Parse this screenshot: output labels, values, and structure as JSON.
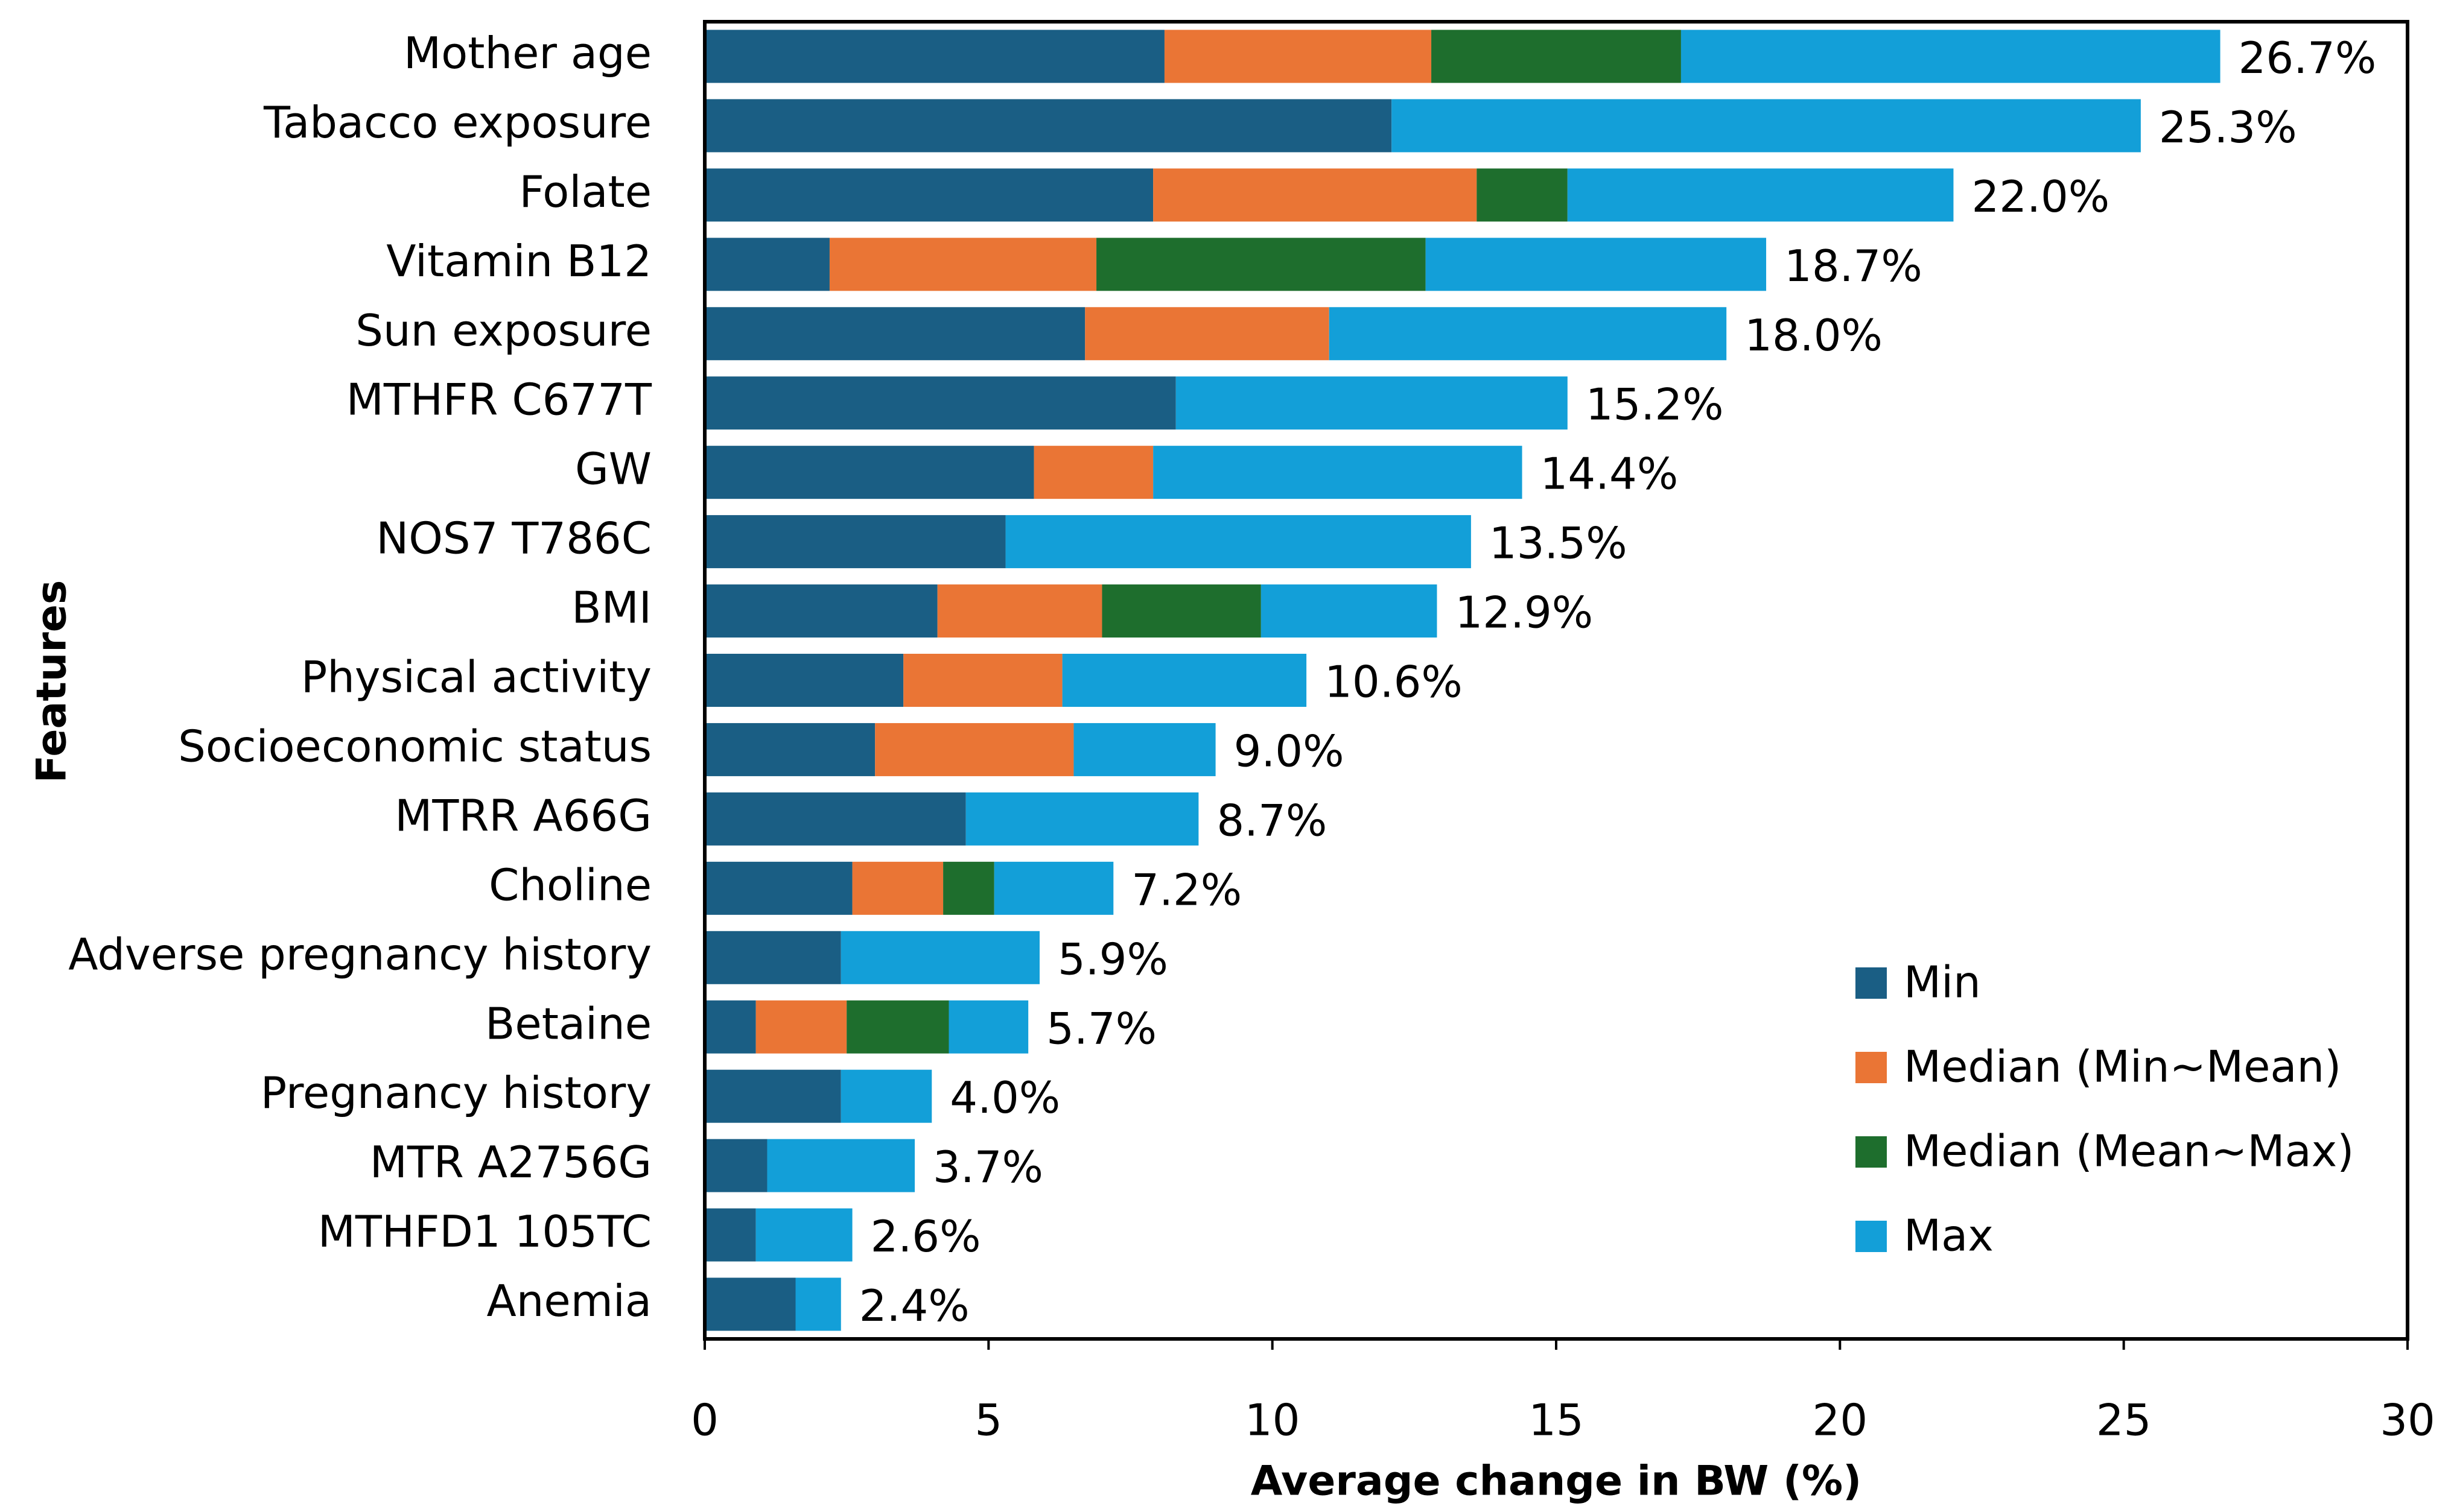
{
  "chart_data": {
    "type": "stacked_bar_horizontal",
    "x_label": "Average change in BW (%)",
    "y_label": "Features",
    "categories": [
      "Mother age",
      "Tabacco exposure",
      "Folate",
      "Vitamin B12",
      "Sun exposure",
      "MTHFR C677T",
      "GW",
      "NOS7 T786C",
      "BMI",
      "Physical activity",
      "Socioeconomic status",
      "MTRR A66G",
      "Choline",
      "Adverse pregnancy history",
      "Betaine",
      "Pregnancy history",
      "MTR A2756G",
      "MTHFD1 105TC",
      "Anemia"
    ],
    "series": [
      {
        "name": "Min",
        "color": "#1a5e84",
        "values": [
          8.1,
          12.1,
          7.9,
          2.2,
          6.7,
          8.3,
          5.8,
          5.3,
          4.1,
          3.5,
          3.0,
          4.6,
          2.6,
          2.4,
          0.9,
          2.4,
          1.1,
          0.9,
          1.6
        ]
      },
      {
        "name": "Median (Min~Mean)",
        "color": "#ea7535",
        "values": [
          4.7,
          null,
          5.7,
          4.7,
          4.3,
          null,
          2.1,
          null,
          2.9,
          2.8,
          3.5,
          null,
          1.6,
          null,
          1.6,
          null,
          null,
          null,
          null
        ]
      },
      {
        "name": "Median (Mean~Max)",
        "color": "#1e6e2d",
        "values": [
          4.4,
          null,
          1.6,
          5.8,
          null,
          null,
          null,
          null,
          2.8,
          null,
          null,
          null,
          0.9,
          null,
          1.8,
          null,
          null,
          null,
          null
        ]
      },
      {
        "name": "Max",
        "color": "#139fd8",
        "values": [
          9.5,
          13.2,
          6.8,
          6.0,
          7.0,
          6.9,
          6.5,
          8.2,
          3.1,
          4.3,
          2.5,
          4.1,
          2.1,
          3.5,
          1.4,
          1.6,
          2.6,
          1.7,
          0.8
        ]
      }
    ],
    "totals": [
      26.7,
      25.3,
      22.0,
      18.7,
      18.0,
      15.2,
      14.4,
      13.5,
      12.9,
      10.6,
      9.0,
      8.7,
      7.2,
      5.9,
      5.7,
      4.0,
      3.7,
      2.6,
      2.4
    ],
    "total_labels": [
      "26.7%",
      "25.3%",
      "22.0%",
      "18.7%",
      "18.0%",
      "15.2%",
      "14.4%",
      "13.5%",
      "12.9%",
      "10.6%",
      "9.0%",
      "8.7%",
      "7.2%",
      "5.9%",
      "5.7%",
      "4.0%",
      "3.7%",
      "2.6%",
      "2.4%"
    ],
    "xlim": [
      0,
      30
    ],
    "xticks": [
      0,
      5,
      10,
      15,
      20,
      25,
      30
    ],
    "legend": "lower right"
  }
}
